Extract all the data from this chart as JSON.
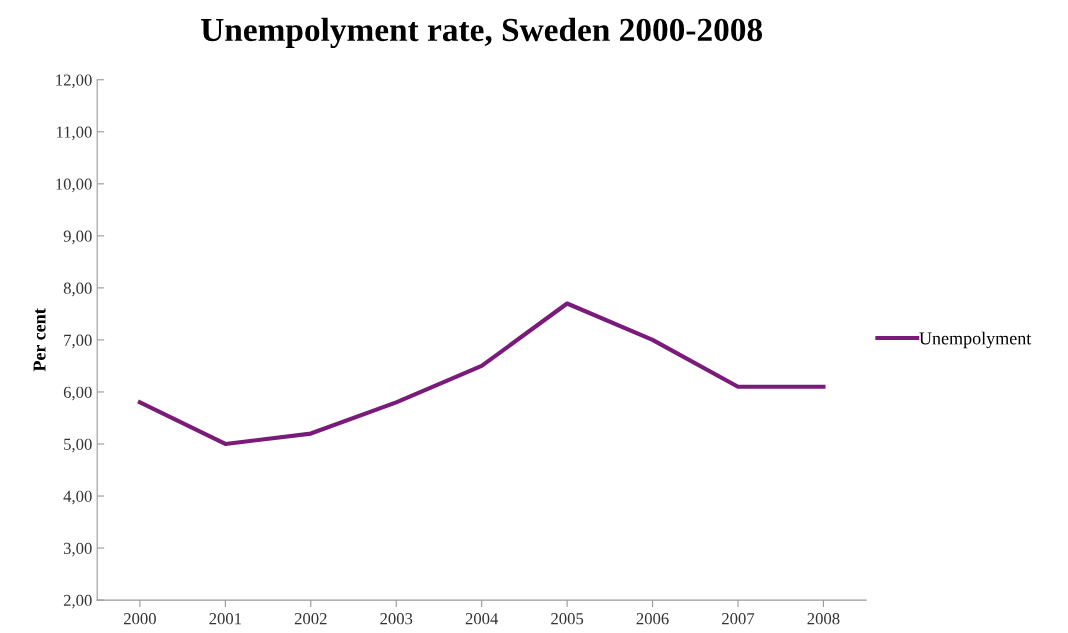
{
  "chart_data": {
    "type": "line",
    "title": "Unempolyment rate, Sweden 2000-2008",
    "ylabel": "Per cent",
    "categories": [
      "2000",
      "2001",
      "2002",
      "2003",
      "2004",
      "2005",
      "2006",
      "2007",
      "2008"
    ],
    "series": [
      {
        "name": "Unempolyment",
        "color": "#7a1a7a",
        "values": [
          5.8,
          5.0,
          5.2,
          5.8,
          6.5,
          7.7,
          7.0,
          6.1,
          6.1
        ]
      }
    ],
    "ylim": [
      2,
      12
    ],
    "yticks": [
      {
        "value": 2,
        "label": "2,00"
      },
      {
        "value": 3,
        "label": "3,00"
      },
      {
        "value": 4,
        "label": "4,00"
      },
      {
        "value": 5,
        "label": "5,00"
      },
      {
        "value": 6,
        "label": "6,00"
      },
      {
        "value": 7,
        "label": "7,00"
      },
      {
        "value": 8,
        "label": "8,00"
      },
      {
        "value": 9,
        "label": "9,00"
      },
      {
        "value": 10,
        "label": "10,00"
      },
      {
        "value": 11,
        "label": "11,00"
      },
      {
        "value": 12,
        "label": "12,00"
      }
    ],
    "grid": false,
    "legend": "right",
    "marker": "none",
    "line_style": "solid"
  }
}
